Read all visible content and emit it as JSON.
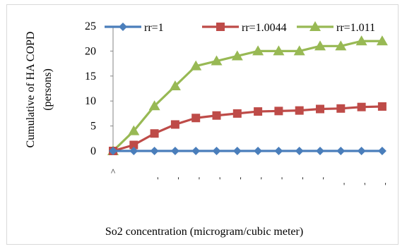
{
  "chart_data": {
    "type": "line",
    "ylabel_line1": "Cumulative of HA COPD",
    "ylabel_line2": "(persons)",
    "xlabel": "So2 concentration (microgram/cubic meter)",
    "ylim": [
      0,
      25
    ],
    "yticks": [
      0,
      5,
      10,
      15,
      20,
      25
    ],
    "legend_position": "top",
    "x_tick_labels": [
      "^",
      "'",
      "'",
      "'",
      "'",
      "'",
      "'",
      "'",
      "'",
      "'",
      "'",
      "'",
      "'",
      "'"
    ],
    "series": [
      {
        "name": "rr=1",
        "color": "#4a7ebb",
        "marker": "diamond",
        "values": [
          0,
          0,
          0,
          0,
          0,
          0,
          0,
          0,
          0,
          0,
          0,
          0,
          0,
          0
        ]
      },
      {
        "name": "rr=1.0044",
        "color": "#be4b48",
        "marker": "square",
        "values": [
          0,
          1.2,
          3.5,
          5.3,
          6.6,
          7.1,
          7.5,
          7.9,
          8.0,
          8.1,
          8.4,
          8.5,
          8.8,
          8.9
        ]
      },
      {
        "name": "rr=1.011",
        "color": "#98b954",
        "marker": "triangle",
        "values": [
          0,
          4,
          9,
          13,
          17,
          18,
          19,
          20,
          20,
          20,
          21,
          21,
          22,
          22
        ]
      }
    ]
  }
}
